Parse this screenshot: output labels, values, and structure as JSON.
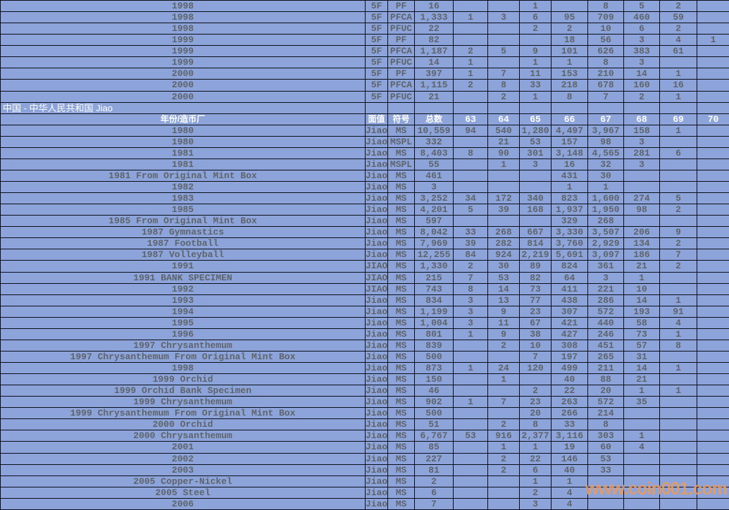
{
  "page": {
    "watermark": "www.coin001.com"
  },
  "colors": {
    "background": "#8CA4DA",
    "grid": "#0A0D1A",
    "data_text": "#5F646B",
    "header_text": "#FFFFFF",
    "watermark": "#E89B64"
  },
  "table": {
    "section_title": "中国 - 中华人民共和国 Jiao",
    "columns": [
      "年份/造币厂",
      "面值",
      "符号",
      "总数",
      "63",
      "64",
      "65",
      "66",
      "67",
      "68",
      "69",
      "70"
    ],
    "rows_top": [
      [
        "1998",
        "5F",
        "PF",
        "16",
        "",
        "",
        "1",
        "",
        "8",
        "5",
        "2",
        ""
      ],
      [
        "1998",
        "5F",
        "PFCA",
        "1,333",
        "1",
        "3",
        "6",
        "95",
        "709",
        "460",
        "59",
        ""
      ],
      [
        "1998",
        "5F",
        "PFUC",
        "22",
        "",
        "",
        "2",
        "2",
        "10",
        "6",
        "2",
        ""
      ],
      [
        "1999",
        "5F",
        "PF",
        "82",
        "",
        "",
        "",
        "18",
        "56",
        "3",
        "4",
        "1"
      ],
      [
        "1999",
        "5F",
        "PFCA",
        "1,187",
        "2",
        "5",
        "9",
        "101",
        "626",
        "383",
        "61",
        ""
      ],
      [
        "1999",
        "5F",
        "PFUC",
        "14",
        "1",
        "",
        "1",
        "1",
        "8",
        "3",
        "",
        ""
      ],
      [
        "2000",
        "5F",
        "PF",
        "397",
        "1",
        "7",
        "11",
        "153",
        "210",
        "14",
        "1",
        ""
      ],
      [
        "2000",
        "5F",
        "PFCA",
        "1,115",
        "2",
        "8",
        "33",
        "218",
        "678",
        "160",
        "16",
        ""
      ],
      [
        "2000",
        "5F",
        "PFUC",
        "21",
        "",
        "2",
        "1",
        "8",
        "7",
        "2",
        "1",
        ""
      ]
    ],
    "rows_jiao": [
      [
        "1980",
        "Jiao",
        "MS",
        "10,559",
        "94",
        "540",
        "1,280",
        "4,497",
        "3,967",
        "158",
        "1",
        ""
      ],
      [
        "1980",
        "Jiao",
        "MSPL",
        "332",
        "",
        "21",
        "53",
        "157",
        "98",
        "3",
        "",
        ""
      ],
      [
        "1981",
        "Jiao",
        "MS",
        "8,403",
        "8",
        "90",
        "301",
        "3,148",
        "4,565",
        "281",
        "6",
        ""
      ],
      [
        "1981",
        "Jiao",
        "MSPL",
        "55",
        "",
        "1",
        "3",
        "16",
        "32",
        "3",
        "",
        ""
      ],
      [
        "1981 From Original Mint Box",
        "Jiao",
        "MS",
        "461",
        "",
        "",
        "",
        "431",
        "30",
        "",
        "",
        ""
      ],
      [
        "1982",
        "Jiao",
        "MS",
        "3",
        "",
        "",
        "",
        "1",
        "1",
        "",
        "",
        ""
      ],
      [
        "1983",
        "Jiao",
        "MS",
        "3,252",
        "34",
        "172",
        "340",
        "823",
        "1,600",
        "274",
        "5",
        ""
      ],
      [
        "1985",
        "Jiao",
        "MS",
        "4,201",
        "5",
        "39",
        "168",
        "1,937",
        "1,950",
        "98",
        "2",
        ""
      ],
      [
        "1985 From Original Mint Box",
        "Jiao",
        "MS",
        "597",
        "",
        "",
        "",
        "329",
        "268",
        "",
        "",
        ""
      ],
      [
        "1987 Gymnastics",
        "Jiao",
        "MS",
        "8,042",
        "33",
        "268",
        "667",
        "3,330",
        "3,507",
        "206",
        "9",
        ""
      ],
      [
        "1987 Football",
        "Jiao",
        "MS",
        "7,969",
        "39",
        "282",
        "814",
        "3,760",
        "2,929",
        "134",
        "2",
        ""
      ],
      [
        "1987 Volleyball",
        "Jiao",
        "MS",
        "12,255",
        "84",
        "924",
        "2,219",
        "5,691",
        "3,097",
        "186",
        "7",
        ""
      ],
      [
        "1991",
        "JIAO",
        "MS",
        "1,330",
        "2",
        "30",
        "89",
        "824",
        "361",
        "21",
        "2",
        ""
      ],
      [
        "1991 BANK SPECIMEN",
        "JIAO",
        "MS",
        "215",
        "7",
        "53",
        "82",
        "64",
        "3",
        "1",
        "",
        ""
      ],
      [
        "1992",
        "JIAO",
        "MS",
        "743",
        "8",
        "14",
        "73",
        "411",
        "221",
        "10",
        "",
        ""
      ],
      [
        "1993",
        "Jiao",
        "MS",
        "834",
        "3",
        "13",
        "77",
        "438",
        "286",
        "14",
        "1",
        ""
      ],
      [
        "1994",
        "Jiao",
        "MS",
        "1,199",
        "3",
        "9",
        "23",
        "307",
        "572",
        "193",
        "91",
        ""
      ],
      [
        "1995",
        "Jiao",
        "MS",
        "1,004",
        "3",
        "11",
        "67",
        "421",
        "440",
        "58",
        "4",
        ""
      ],
      [
        "1996",
        "Jiao",
        "MS",
        "801",
        "1",
        "9",
        "38",
        "427",
        "246",
        "73",
        "1",
        ""
      ],
      [
        "1997 Chrysanthemum",
        "Jiao",
        "MS",
        "839",
        "",
        "2",
        "10",
        "308",
        "451",
        "57",
        "8",
        ""
      ],
      [
        "1997 Chrysanthemum From Original Mint Box",
        "Jiao",
        "MS",
        "500",
        "",
        "",
        "7",
        "197",
        "265",
        "31",
        "",
        ""
      ],
      [
        "1998",
        "Jiao",
        "MS",
        "873",
        "1",
        "24",
        "120",
        "499",
        "211",
        "14",
        "1",
        ""
      ],
      [
        "1999 Orchid",
        "Jiao",
        "MS",
        "150",
        "",
        "1",
        "",
        "40",
        "88",
        "21",
        "",
        ""
      ],
      [
        "1999 Orchid Bank Specimen",
        "Jiao",
        "MS",
        "46",
        "",
        "",
        "2",
        "22",
        "20",
        "1",
        "1",
        ""
      ],
      [
        "1999 Chrysanthemum",
        "Jiao",
        "MS",
        "902",
        "1",
        "7",
        "23",
        "263",
        "572",
        "35",
        "",
        ""
      ],
      [
        "1999 Chrysanthemum From Original Mint Box",
        "Jiao",
        "MS",
        "500",
        "",
        "",
        "20",
        "266",
        "214",
        "",
        "",
        ""
      ],
      [
        "2000 Orchid",
        "Jiao",
        "MS",
        "51",
        "",
        "2",
        "8",
        "33",
        "8",
        "",
        "",
        ""
      ],
      [
        "2000 Chrysanthemum",
        "Jiao",
        "MS",
        "6,767",
        "53",
        "916",
        "2,377",
        "3,116",
        "303",
        "1",
        "",
        ""
      ],
      [
        "2001",
        "Jiao",
        "MS",
        "85",
        "",
        "1",
        "1",
        "19",
        "60",
        "4",
        "",
        ""
      ],
      [
        "2002",
        "Jiao",
        "MS",
        "227",
        "",
        "2",
        "22",
        "146",
        "53",
        "",
        "",
        ""
      ],
      [
        "2003",
        "Jiao",
        "MS",
        "81",
        "",
        "2",
        "6",
        "40",
        "33",
        "",
        "",
        ""
      ],
      [
        "2005 Copper-Nickel",
        "Jiao",
        "MS",
        "2",
        "",
        "",
        "1",
        "1",
        "",
        "",
        "",
        ""
      ],
      [
        "2005 Steel",
        "Jiao",
        "MS",
        "6",
        "",
        "",
        "2",
        "4",
        "",
        "",
        "",
        ""
      ],
      [
        "2006",
        "Jiao",
        "MS",
        "7",
        "",
        "",
        "3",
        "4",
        "",
        "",
        "",
        ""
      ]
    ]
  }
}
